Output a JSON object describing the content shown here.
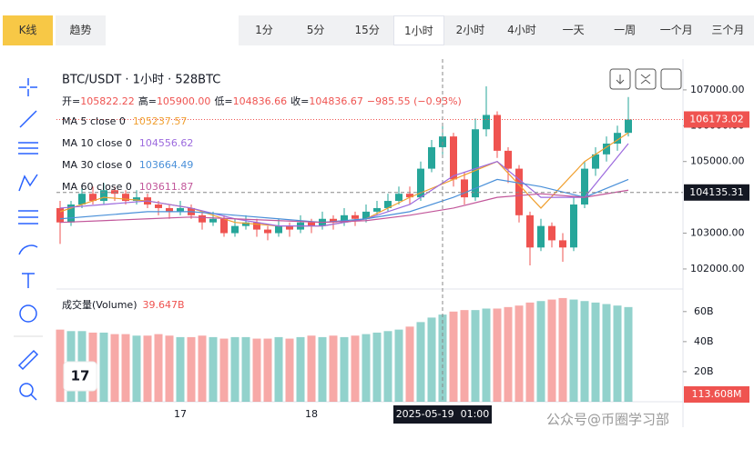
{
  "toolbar": {
    "tabs": [
      "K线",
      "趋势"
    ],
    "active_tab": 0,
    "timeframes": [
      "1分",
      "5分",
      "15分",
      "1小时",
      "2小时",
      "4小时",
      "一天",
      "一周",
      "一个月",
      "三个月"
    ],
    "active_timeframe": 3
  },
  "chart_data": {
    "type": "candlestick",
    "title": "BTC/USDT · 1小时 · 528BTC",
    "ohlc": [
      {
        "label": "开=",
        "value": "105822.22"
      },
      {
        "label": "高=",
        "value": "105900.00"
      },
      {
        "label": "低=",
        "value": "104836.66"
      },
      {
        "label": "收=",
        "value": "104836.67"
      }
    ],
    "change": "−985.55 (−0.93%)",
    "categories": [
      null,
      null,
      null,
      null,
      null,
      null,
      null,
      null,
      null,
      null,
      null,
      "17",
      null,
      null,
      null,
      null,
      null,
      null,
      null,
      null,
      null,
      null,
      null,
      "18",
      null,
      null,
      null,
      null,
      null,
      null,
      null,
      null,
      null,
      null,
      null,
      "2025-05-19  01:00",
      null,
      null,
      null,
      null,
      null,
      null,
      null,
      null,
      null,
      null,
      null,
      null,
      null,
      null,
      null,
      null,
      null
    ],
    "open": [
      103700,
      103300,
      103800,
      104100,
      103900,
      104200,
      104100,
      103900,
      104000,
      103800,
      103700,
      103600,
      103700,
      103500,
      103300,
      103400,
      103000,
      103200,
      103300,
      103100,
      103000,
      103200,
      103100,
      103300,
      103200,
      103400,
      103300,
      103500,
      103400,
      103600,
      103700,
      103900,
      104100,
      104000,
      104800,
      105400,
      105700,
      104500,
      104000,
      105900,
      106300,
      105300,
      104800,
      103500,
      102600,
      103200,
      102800,
      102600,
      103800,
      104800,
      105200,
      105500,
      105800
    ],
    "high": [
      103900,
      103900,
      104300,
      104300,
      104400,
      104300,
      104200,
      104200,
      104100,
      103900,
      103800,
      103900,
      103800,
      103600,
      103600,
      103500,
      103400,
      103500,
      103400,
      103200,
      103400,
      103300,
      103500,
      103400,
      103600,
      103500,
      103700,
      103600,
      103800,
      103900,
      104100,
      104300,
      104300,
      105000,
      105600,
      106000,
      105800,
      104700,
      106200,
      107100,
      106400,
      105400,
      104900,
      103600,
      103400,
      103300,
      103000,
      104000,
      105000,
      105400,
      105700,
      106000,
      106800
    ],
    "low": [
      102700,
      103200,
      103700,
      103800,
      103800,
      103900,
      103800,
      103800,
      103700,
      103500,
      103400,
      103500,
      103400,
      103100,
      103200,
      102900,
      102900,
      103100,
      102900,
      102800,
      102900,
      102900,
      103000,
      103000,
      103100,
      103100,
      103200,
      103200,
      103300,
      103500,
      103600,
      103800,
      103800,
      103900,
      104700,
      105200,
      104300,
      103800,
      103900,
      105700,
      105100,
      104400,
      103300,
      102100,
      102500,
      102600,
      102200,
      102500,
      103700,
      104600,
      105000,
      105300,
      105700
    ],
    "close": [
      103300,
      103800,
      104100,
      103900,
      104200,
      104100,
      103900,
      104000,
      103800,
      103700,
      103600,
      103700,
      103500,
      103300,
      103400,
      103000,
      103200,
      103300,
      103100,
      103000,
      103200,
      103100,
      103300,
      103200,
      103400,
      103300,
      103500,
      103400,
      103600,
      103700,
      103900,
      104100,
      104000,
      104800,
      105400,
      105700,
      104500,
      104000,
      105900,
      106300,
      105300,
      104800,
      103500,
      102600,
      103200,
      102800,
      102600,
      103800,
      104800,
      105200,
      105500,
      105800,
      106173.02
    ],
    "volume": [
      48,
      47,
      47,
      46,
      46,
      45,
      45,
      44,
      44,
      45,
      44,
      43,
      43,
      44,
      43,
      42,
      43,
      43,
      42,
      42,
      43,
      42,
      43,
      44,
      43,
      44,
      43,
      44,
      45,
      46,
      47,
      48,
      50,
      53,
      56,
      58,
      60,
      61,
      61,
      62,
      62,
      63,
      64,
      66,
      67,
      68,
      69,
      68,
      67,
      66,
      65,
      64,
      63
    ],
    "up_color": "#26a69a",
    "down_color": "#ef5350",
    "ma_index": [
      0,
      4,
      8,
      12,
      16,
      20,
      24,
      28,
      32,
      36,
      40,
      44,
      48,
      52
    ],
    "ma": [
      {
        "name": "MA 5 close 0",
        "last": "105237.57",
        "color": "#f0a030",
        "values": [
          103600,
          104000,
          103900,
          103700,
          103300,
          103200,
          103200,
          103400,
          104000,
          104500,
          105000,
          103700,
          105000,
          105800
        ]
      },
      {
        "name": "MA 10 close 0",
        "last": "104556.62",
        "color": "#9c6ade",
        "values": [
          103700,
          103800,
          103900,
          103700,
          103400,
          103200,
          103200,
          103400,
          103800,
          104600,
          105000,
          104000,
          104000,
          105500
        ]
      },
      {
        "name": "MA 30 close 0",
        "last": "103664.49",
        "color": "#4a90d9",
        "values": [
          103400,
          103500,
          103600,
          103600,
          103500,
          103400,
          103300,
          103400,
          103600,
          104000,
          104500,
          104300,
          104000,
          104500
        ]
      },
      {
        "name": "MA 60 close 0",
        "last": "103611.87",
        "color": "#c2569a",
        "values": [
          103300,
          103350,
          103400,
          103450,
          103400,
          103350,
          103300,
          103350,
          103500,
          103700,
          104000,
          104100,
          104000,
          104200
        ]
      }
    ],
    "ylim": [
      101440,
      107860
    ],
    "yticks": [
      {
        "value": 107000,
        "label": "107000.00"
      },
      {
        "value": 106000,
        "label": "106000.00"
      },
      {
        "value": 105000,
        "label": "105000.00"
      },
      {
        "value": 103000,
        "label": "103000.00"
      },
      {
        "value": 102000,
        "label": "102000.00"
      }
    ],
    "last_price": {
      "value": 106173.02,
      "label": "106173.02"
    },
    "crosshair": {
      "index": 35,
      "price": {
        "value": 104135.31,
        "label": "104135.31"
      }
    },
    "volume_title": "成交量(Volume)",
    "volume_value": "39.647B",
    "volume_last": "113.608M",
    "vlim": [
      0,
      75
    ],
    "vticks": [
      {
        "value": 60,
        "label": "60B"
      },
      {
        "value": 40,
        "label": "40B"
      },
      {
        "value": 20,
        "label": "20B"
      }
    ]
  },
  "watermark": "公众号@币圈学习部"
}
